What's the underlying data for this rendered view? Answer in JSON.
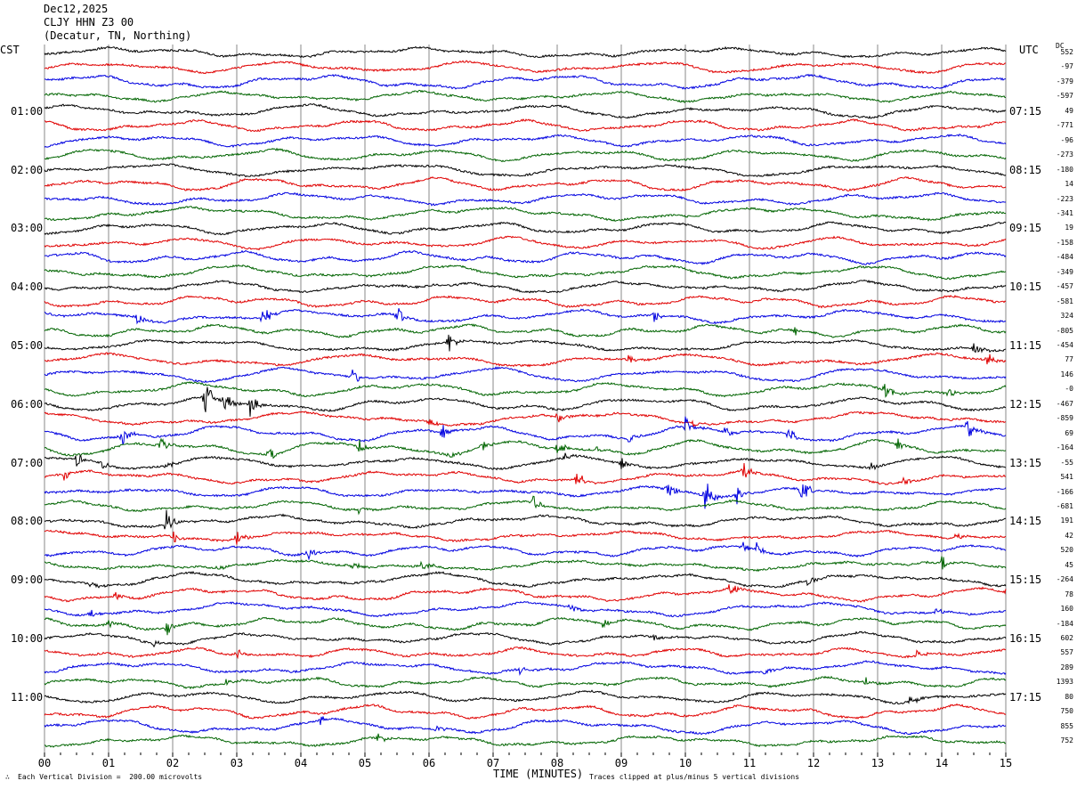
{
  "header": {
    "date": "Dec12,2025",
    "station": "CLJY HHN Z3 00",
    "location": "(Decatur, TN, Northing)"
  },
  "left_axis_title": "CST",
  "right_axis_title": "UTC",
  "dc_title": "DC",
  "footer": {
    "scale_note": "Each Vertical Division =  200.00 microvolts",
    "x_axis_title": "TIME (MINUTES)",
    "clip_note": "Traces clipped at plus/minus 5 vertical divisions"
  },
  "trace_colors": [
    "#000000",
    "#e00000",
    "#0000e0",
    "#006400"
  ],
  "chart_data": {
    "type": "line",
    "subtype": "helicorder",
    "x_ticks": [
      "00",
      "01",
      "02",
      "03",
      "04",
      "05",
      "06",
      "07",
      "08",
      "09",
      "10",
      "11",
      "12",
      "13",
      "14",
      "15"
    ],
    "xlim": [
      0,
      15
    ],
    "left_time_labels": [
      {
        "row": 4,
        "text": "01:00"
      },
      {
        "row": 8,
        "text": "02:00"
      },
      {
        "row": 12,
        "text": "03:00"
      },
      {
        "row": 16,
        "text": "04:00"
      },
      {
        "row": 20,
        "text": "05:00"
      },
      {
        "row": 24,
        "text": "06:00"
      },
      {
        "row": 28,
        "text": "07:00"
      },
      {
        "row": 32,
        "text": "08:00"
      },
      {
        "row": 36,
        "text": "09:00"
      },
      {
        "row": 40,
        "text": "10:00"
      },
      {
        "row": 44,
        "text": "11:00"
      }
    ],
    "right_time_labels": [
      {
        "row": 4,
        "text": "07:15"
      },
      {
        "row": 8,
        "text": "08:15"
      },
      {
        "row": 12,
        "text": "09:15"
      },
      {
        "row": 16,
        "text": "10:15"
      },
      {
        "row": 20,
        "text": "11:15"
      },
      {
        "row": 24,
        "text": "12:15"
      },
      {
        "row": 28,
        "text": "13:15"
      },
      {
        "row": 32,
        "text": "14:15"
      },
      {
        "row": 36,
        "text": "15:15"
      },
      {
        "row": 40,
        "text": "16:15"
      },
      {
        "row": 44,
        "text": "17:15"
      }
    ],
    "dc_offsets": [
      "552",
      "-97",
      "-379",
      "-597",
      "49",
      "-771",
      "-96",
      "-273",
      "-180",
      "14",
      "-223",
      "-341",
      "19",
      "-158",
      "-484",
      "-349",
      "-457",
      "-581",
      "324",
      "-805",
      "-454",
      "77",
      "146",
      "-0",
      "-467",
      "-859",
      "69",
      "-164",
      "-55",
      "541",
      "-166",
      "-681",
      "191",
      "42",
      "520",
      "45",
      "-264",
      "78",
      "160",
      "-184",
      "602",
      "557",
      "289",
      "1393",
      "80",
      "750",
      "855",
      "752"
    ],
    "events": [
      {
        "row": 18,
        "min": 1.4,
        "amp": 0.9
      },
      {
        "row": 18,
        "min": 3.4,
        "amp": 1.2
      },
      {
        "row": 18,
        "min": 5.5,
        "amp": 1.1
      },
      {
        "row": 18,
        "min": 9.5,
        "amp": 0.9
      },
      {
        "row": 19,
        "min": 11.7,
        "amp": 0.6
      },
      {
        "row": 20,
        "min": 6.3,
        "amp": 1.0
      },
      {
        "row": 20,
        "min": 14.5,
        "amp": 1.2
      },
      {
        "row": 21,
        "min": 9.1,
        "amp": 0.6
      },
      {
        "row": 21,
        "min": 14.7,
        "amp": 1.0
      },
      {
        "row": 22,
        "min": 4.8,
        "amp": 1.0
      },
      {
        "row": 23,
        "min": 13.1,
        "amp": 1.2
      },
      {
        "row": 23,
        "min": 14.1,
        "amp": 0.5
      },
      {
        "row": 24,
        "min": 2.5,
        "amp": 2.2
      },
      {
        "row": 24,
        "min": 2.8,
        "amp": 1.2
      },
      {
        "row": 24,
        "min": 3.2,
        "amp": 1.4
      },
      {
        "row": 25,
        "min": 6.0,
        "amp": 0.6
      },
      {
        "row": 25,
        "min": 8.0,
        "amp": 0.7
      },
      {
        "row": 25,
        "min": 10.1,
        "amp": 0.7
      },
      {
        "row": 26,
        "min": 1.2,
        "amp": 1.3
      },
      {
        "row": 26,
        "min": 6.2,
        "amp": 1.0
      },
      {
        "row": 26,
        "min": 9.1,
        "amp": 0.8
      },
      {
        "row": 26,
        "min": 10.0,
        "amp": 1.1
      },
      {
        "row": 26,
        "min": 10.6,
        "amp": 0.8
      },
      {
        "row": 26,
        "min": 11.6,
        "amp": 1.0
      },
      {
        "row": 26,
        "min": 14.4,
        "amp": 1.4
      },
      {
        "row": 27,
        "min": 1.8,
        "amp": 0.9
      },
      {
        "row": 27,
        "min": 3.5,
        "amp": 0.8
      },
      {
        "row": 27,
        "min": 4.9,
        "amp": 0.8
      },
      {
        "row": 27,
        "min": 6.3,
        "amp": 0.8
      },
      {
        "row": 27,
        "min": 6.8,
        "amp": 1.0
      },
      {
        "row": 27,
        "min": 8.0,
        "amp": 1.0
      },
      {
        "row": 27,
        "min": 8.6,
        "amp": 0.7
      },
      {
        "row": 27,
        "min": 13.3,
        "amp": 0.7
      },
      {
        "row": 28,
        "min": 0.5,
        "amp": 0.8
      },
      {
        "row": 28,
        "min": 0.9,
        "amp": 0.6
      },
      {
        "row": 28,
        "min": 1.9,
        "amp": 0.6
      },
      {
        "row": 28,
        "min": 8.1,
        "amp": 0.7
      },
      {
        "row": 28,
        "min": 9.0,
        "amp": 0.6
      },
      {
        "row": 28,
        "min": 12.9,
        "amp": 0.5
      },
      {
        "row": 29,
        "min": 0.3,
        "amp": 0.6
      },
      {
        "row": 29,
        "min": 8.3,
        "amp": 1.2
      },
      {
        "row": 29,
        "min": 10.9,
        "amp": 1.0
      },
      {
        "row": 29,
        "min": 13.4,
        "amp": 0.6
      },
      {
        "row": 30,
        "min": 9.7,
        "amp": 1.4
      },
      {
        "row": 30,
        "min": 10.3,
        "amp": 2.4
      },
      {
        "row": 30,
        "min": 10.8,
        "amp": 1.0
      },
      {
        "row": 30,
        "min": 11.8,
        "amp": 2.0
      },
      {
        "row": 31,
        "min": 4.9,
        "amp": 0.5
      },
      {
        "row": 31,
        "min": 7.6,
        "amp": 1.0
      },
      {
        "row": 32,
        "min": 1.9,
        "amp": 1.6
      },
      {
        "row": 33,
        "min": 2.0,
        "amp": 0.8
      },
      {
        "row": 33,
        "min": 3.0,
        "amp": 0.8
      },
      {
        "row": 33,
        "min": 14.2,
        "amp": 0.6
      },
      {
        "row": 34,
        "min": 4.1,
        "amp": 0.9
      },
      {
        "row": 34,
        "min": 10.9,
        "amp": 0.6
      },
      {
        "row": 34,
        "min": 11.1,
        "amp": 0.8
      },
      {
        "row": 35,
        "min": 2.7,
        "amp": 0.5
      },
      {
        "row": 35,
        "min": 4.8,
        "amp": 0.5
      },
      {
        "row": 35,
        "min": 5.9,
        "amp": 0.8
      },
      {
        "row": 35,
        "min": 14.0,
        "amp": 0.8
      },
      {
        "row": 36,
        "min": 0.7,
        "amp": 0.5
      },
      {
        "row": 36,
        "min": 11.9,
        "amp": 0.5
      },
      {
        "row": 37,
        "min": 1.1,
        "amp": 0.5
      },
      {
        "row": 37,
        "min": 10.7,
        "amp": 1.1
      },
      {
        "row": 37,
        "min": 15.0,
        "amp": 0.6
      },
      {
        "row": 38,
        "min": 0.7,
        "amp": 0.5
      },
      {
        "row": 38,
        "min": 8.2,
        "amp": 0.6
      },
      {
        "row": 38,
        "min": 13.9,
        "amp": 0.5
      },
      {
        "row": 39,
        "min": 1.0,
        "amp": 0.5
      },
      {
        "row": 39,
        "min": 1.9,
        "amp": 0.9
      },
      {
        "row": 39,
        "min": 8.7,
        "amp": 0.6
      },
      {
        "row": 40,
        "min": 1.7,
        "amp": 0.5
      },
      {
        "row": 40,
        "min": 9.5,
        "amp": 0.5
      },
      {
        "row": 41,
        "min": 3.0,
        "amp": 0.6
      },
      {
        "row": 41,
        "min": 13.6,
        "amp": 0.6
      },
      {
        "row": 42,
        "min": 7.4,
        "amp": 0.5
      },
      {
        "row": 42,
        "min": 11.2,
        "amp": 0.5
      },
      {
        "row": 43,
        "min": 2.8,
        "amp": 0.5
      },
      {
        "row": 43,
        "min": 12.8,
        "amp": 0.5
      },
      {
        "row": 44,
        "min": 13.5,
        "amp": 0.6
      },
      {
        "row": 46,
        "min": 4.3,
        "amp": 0.5
      },
      {
        "row": 46,
        "min": 6.1,
        "amp": 0.5
      },
      {
        "row": 47,
        "min": 5.2,
        "amp": 0.6
      }
    ]
  }
}
